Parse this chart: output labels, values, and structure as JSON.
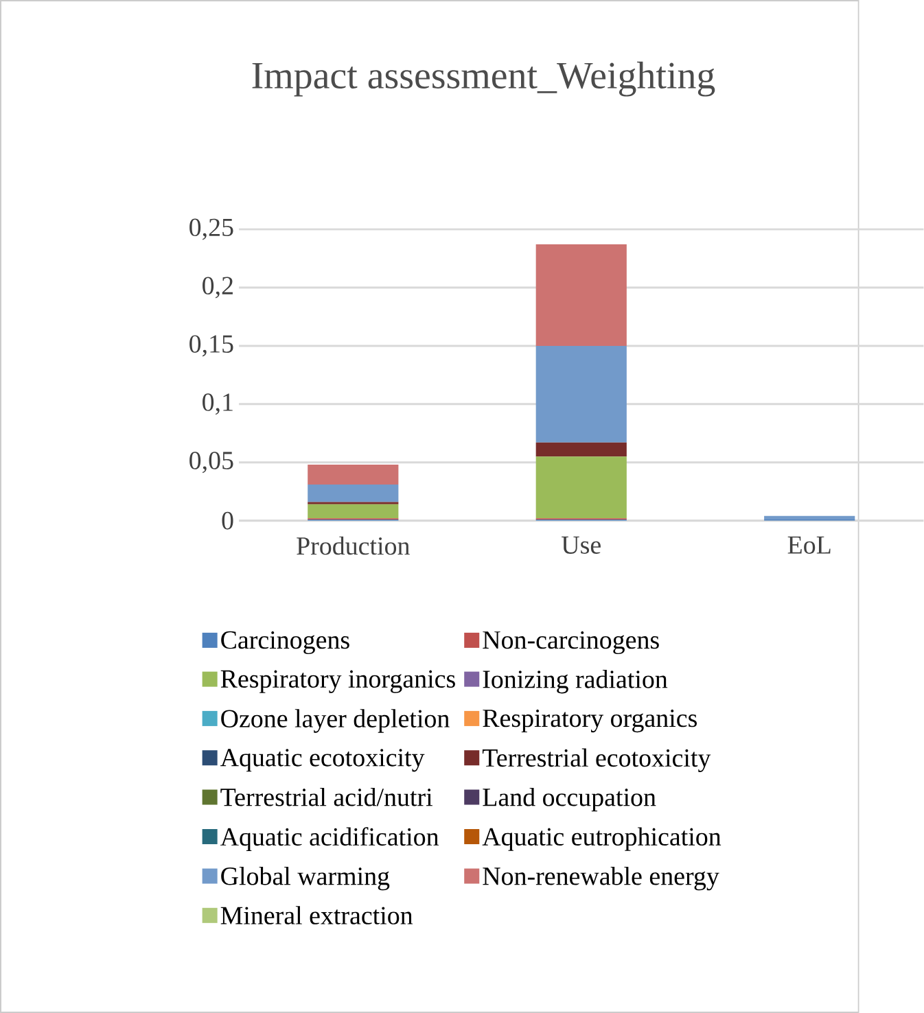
{
  "chart_data": {
    "type": "bar",
    "stacked": true,
    "title": "Impact assessment_Weighting",
    "categories": [
      "Production",
      "Use",
      "EoL"
    ],
    "series": [
      {
        "name": "Carcinogens",
        "color": "#4f81bd",
        "values": [
          0.001,
          0.001,
          0.001
        ]
      },
      {
        "name": "Non-carcinogens",
        "color": "#c0504d",
        "values": [
          0.001,
          0.001,
          0
        ]
      },
      {
        "name": "Respiratory inorganics",
        "color": "#9bbb59",
        "values": [
          0.012,
          0.053,
          0
        ]
      },
      {
        "name": "Ionizing radiation",
        "color": "#8064a2",
        "values": [
          0,
          0,
          0
        ]
      },
      {
        "name": "Ozone layer depletion",
        "color": "#4bacc6",
        "values": [
          0,
          0,
          0
        ]
      },
      {
        "name": "Respiratory organics",
        "color": "#f79646",
        "values": [
          0,
          0,
          0
        ]
      },
      {
        "name": "Aquatic ecotoxicity",
        "color": "#2c4d75",
        "values": [
          0,
          0,
          0
        ]
      },
      {
        "name": "Terrestrial ecotoxicity",
        "color": "#772c2a",
        "values": [
          0.002,
          0.012,
          0
        ]
      },
      {
        "name": "Terrestrial acid/nutri",
        "color": "#5f7530",
        "values": [
          0,
          0,
          0
        ]
      },
      {
        "name": "Land occupation",
        "color": "#4d3b62",
        "values": [
          0,
          0,
          0
        ]
      },
      {
        "name": "Aquatic acidification",
        "color": "#276a7c",
        "values": [
          0,
          0,
          0
        ]
      },
      {
        "name": "Aquatic eutrophication",
        "color": "#b65708",
        "values": [
          0,
          0,
          0
        ]
      },
      {
        "name": "Global warming",
        "color": "#729aca",
        "values": [
          0.015,
          0.083,
          0.003
        ]
      },
      {
        "name": "Non-renewable energy",
        "color": "#cd7371",
        "values": [
          0.017,
          0.087,
          0
        ]
      },
      {
        "name": "Mineral extraction",
        "color": "#afc97a",
        "values": [
          0,
          0,
          0
        ]
      }
    ],
    "ylim": [
      0,
      0.25
    ],
    "yticks": [
      {
        "value": 0,
        "label": "0"
      },
      {
        "value": 0.05,
        "label": "0,05"
      },
      {
        "value": 0.1,
        "label": "0,1"
      },
      {
        "value": 0.15,
        "label": "0,15"
      },
      {
        "value": 0.2,
        "label": "0,2"
      },
      {
        "value": 0.25,
        "label": "0,25"
      }
    ],
    "grid": "y",
    "legend": "bottom"
  }
}
